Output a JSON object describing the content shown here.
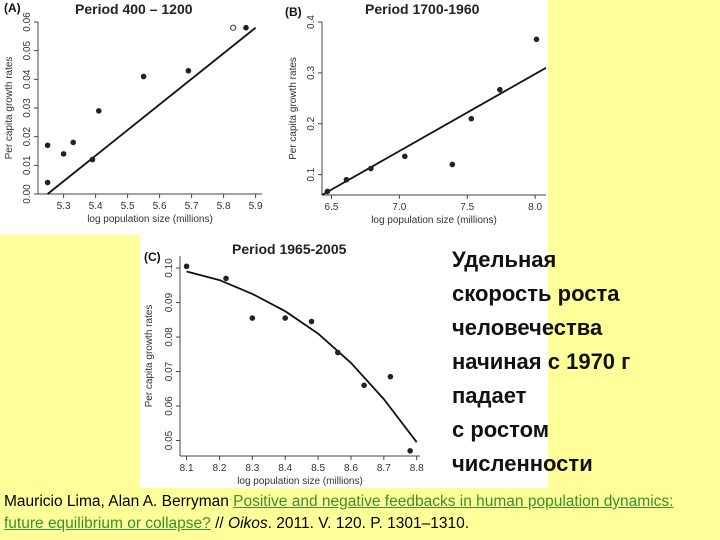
{
  "side_text": {
    "lines": [
      "Удельная",
      "скорость роста",
      "человечества",
      "начиная с 1970 г",
      "падает",
      "с ростом",
      "численности"
    ]
  },
  "citation": {
    "authors": "Mauricio Lima, Alan A. Berryman ",
    "title": "Positive and negative feedbacks in human population dynamics: future equilibrium or collapse?",
    "sep": " // ",
    "journal": "Oikos",
    "details": ". 2011. V. 120. P. 1301–1310."
  },
  "chart_data": [
    {
      "id": "A",
      "type": "scatter",
      "panel_label": "(A)",
      "title": "Period 400 – 1200",
      "xlabel": "log population size (millions)",
      "ylabel": "Per capita growth rates",
      "xlim": [
        5.22,
        5.92
      ],
      "ylim": [
        0.0,
        0.06
      ],
      "xticks": [
        5.3,
        5.4,
        5.5,
        5.6,
        5.7,
        5.8,
        5.9
      ],
      "yticks": [
        0.0,
        0.01,
        0.02,
        0.03,
        0.04,
        0.05,
        0.06
      ],
      "ytick_labels": [
        "0.00",
        "0.01",
        "0.02",
        "0.03",
        "0.04",
        "0.05",
        "0.06"
      ],
      "points": [
        {
          "x": 5.25,
          "y": 0.017
        },
        {
          "x": 5.25,
          "y": 0.004
        },
        {
          "x": 5.3,
          "y": 0.014
        },
        {
          "x": 5.33,
          "y": 0.018
        },
        {
          "x": 5.39,
          "y": 0.012
        },
        {
          "x": 5.41,
          "y": 0.029
        },
        {
          "x": 5.55,
          "y": 0.041
        },
        {
          "x": 5.69,
          "y": 0.043
        },
        {
          "x": 5.83,
          "y": 0.058,
          "open": true
        },
        {
          "x": 5.87,
          "y": 0.058
        }
      ],
      "fit_line": {
        "x": [
          5.25,
          5.9
        ],
        "y": [
          0.0,
          0.058
        ]
      }
    },
    {
      "id": "B",
      "type": "scatter",
      "panel_label": "(B)",
      "title": "Period 1700-1960",
      "xlabel": "log population size (millions)",
      "ylabel": "Per capita growth rates",
      "xlim": [
        6.43,
        8.08
      ],
      "ylim": [
        0.06,
        0.4
      ],
      "xticks": [
        6.5,
        7.0,
        7.5,
        8.0
      ],
      "xtick_labels": [
        "6.5",
        "7.0",
        "7.5",
        "8.0"
      ],
      "yticks": [
        0.1,
        0.2,
        0.3,
        0.4
      ],
      "ytick_labels": [
        "0.1",
        "0.2",
        "0.3",
        "0.4"
      ],
      "points": [
        {
          "x": 6.47,
          "y": 0.067
        },
        {
          "x": 6.61,
          "y": 0.09
        },
        {
          "x": 6.79,
          "y": 0.112
        },
        {
          "x": 7.04,
          "y": 0.136
        },
        {
          "x": 7.39,
          "y": 0.12
        },
        {
          "x": 7.53,
          "y": 0.21
        },
        {
          "x": 7.74,
          "y": 0.267
        },
        {
          "x": 8.01,
          "y": 0.366
        }
      ],
      "fit_line": {
        "x": [
          6.43,
          8.08
        ],
        "y": [
          0.06,
          0.31
        ]
      }
    },
    {
      "id": "C",
      "type": "scatter",
      "panel_label": "(C)",
      "title": "Period 1965-2005",
      "xlabel": "log population size (millions)",
      "ylabel": "Per capita growth rates",
      "xlim": [
        8.08,
        8.81
      ],
      "ylim": [
        0.0455,
        0.1035
      ],
      "xticks": [
        8.1,
        8.2,
        8.3,
        8.4,
        8.5,
        8.6,
        8.7,
        8.8
      ],
      "yticks": [
        0.05,
        0.06,
        0.07,
        0.08,
        0.09,
        0.1
      ],
      "ytick_labels": [
        "0.05",
        "0.06",
        "0.07",
        "0.08",
        "0.09",
        "0.10"
      ],
      "points": [
        {
          "x": 8.1,
          "y": 0.1005
        },
        {
          "x": 8.22,
          "y": 0.097
        },
        {
          "x": 8.3,
          "y": 0.0855
        },
        {
          "x": 8.4,
          "y": 0.0855
        },
        {
          "x": 8.48,
          "y": 0.0845
        },
        {
          "x": 8.56,
          "y": 0.0755
        },
        {
          "x": 8.64,
          "y": 0.066
        },
        {
          "x": 8.72,
          "y": 0.0685
        },
        {
          "x": 8.78,
          "y": 0.047
        }
      ],
      "fit_curve": {
        "x": [
          8.1,
          8.2,
          8.3,
          8.4,
          8.5,
          8.6,
          8.7,
          8.8
        ],
        "y": [
          0.099,
          0.0965,
          0.0925,
          0.0875,
          0.081,
          0.0725,
          0.062,
          0.0495
        ]
      }
    }
  ]
}
